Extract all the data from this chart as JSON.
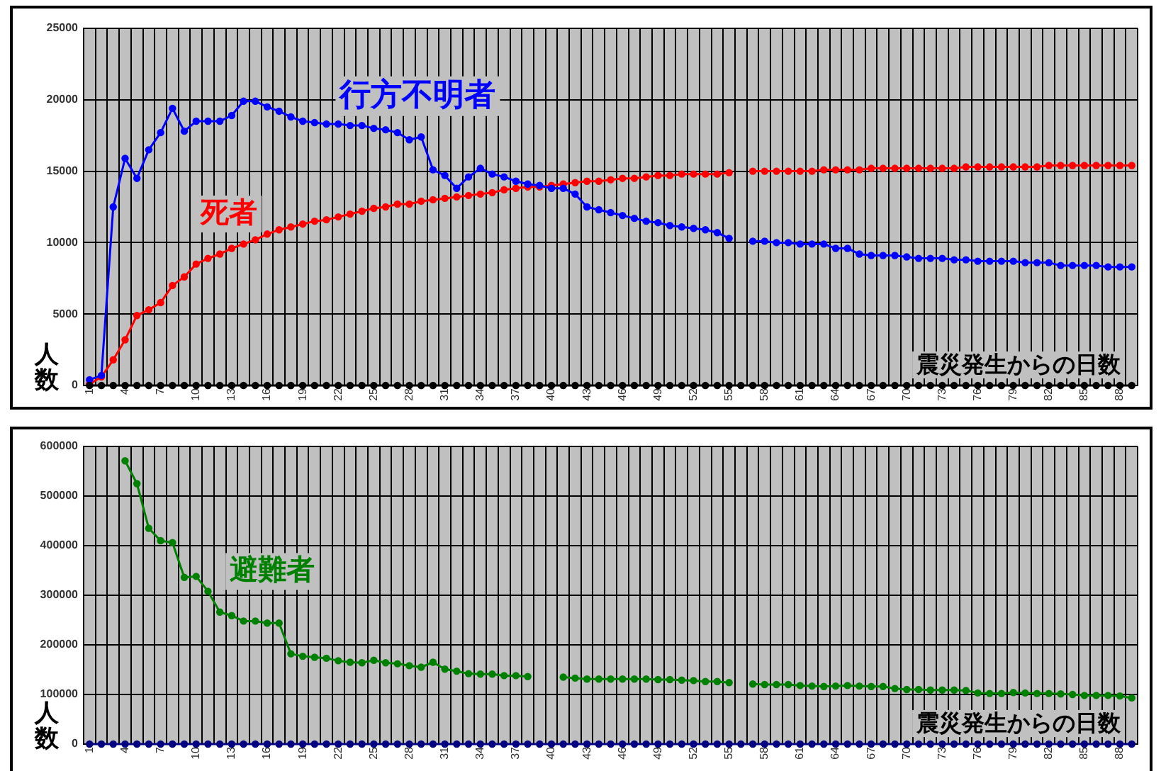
{
  "chart_data": [
    {
      "type": "line",
      "xlabel": "震災発生からの日数",
      "ylabel": "人数",
      "categories": [
        "1",
        null,
        null,
        "4",
        null,
        null,
        "7",
        null,
        null,
        "10",
        null,
        null,
        "13",
        null,
        null,
        "16",
        null,
        null,
        "19",
        null,
        null,
        "22",
        null,
        null,
        "25",
        null,
        null,
        "28",
        null,
        null,
        "31",
        null,
        null,
        "34",
        null,
        null,
        "37",
        null,
        null,
        "40",
        null,
        null,
        "43",
        null,
        null,
        "46",
        null,
        null,
        "49",
        null,
        null,
        "52",
        null,
        null,
        "55",
        null,
        null,
        "58",
        null,
        null,
        "61",
        null,
        null,
        "64",
        null,
        null,
        "67",
        null,
        null,
        "70",
        null,
        null,
        "73",
        null,
        null,
        "76",
        null,
        null,
        "79",
        null,
        null,
        "82",
        null,
        null,
        "85",
        null,
        null,
        "88",
        null
      ],
      "series": [
        {
          "color": "#000000",
          "values": [
            0,
            0,
            0,
            0,
            0,
            0,
            0,
            0,
            0,
            0,
            0,
            0,
            0,
            0,
            0,
            0,
            0,
            0,
            0,
            0,
            0,
            0,
            0,
            0,
            0,
            0,
            0,
            0,
            0,
            0,
            0,
            0,
            0,
            0,
            0,
            0,
            0,
            0,
            0,
            0,
            0,
            0,
            0,
            0,
            0,
            0,
            0,
            0,
            0,
            0,
            0,
            0,
            0,
            0,
            0,
            0,
            0,
            0,
            0,
            0,
            0,
            0,
            0,
            0,
            0,
            0,
            0,
            0,
            0,
            0,
            0,
            0,
            0,
            0,
            0,
            0,
            0,
            0,
            0,
            0,
            0,
            0,
            0,
            0,
            0,
            0,
            0,
            0,
            0
          ]
        },
        {
          "name": "行方不明者",
          "color": "#0000ff",
          "values": [
            400,
            700,
            12500,
            15900,
            14500,
            16500,
            17700,
            19400,
            17800,
            18500,
            18500,
            18500,
            18900,
            19900,
            19900,
            19500,
            19200,
            18800,
            18500,
            18400,
            18300,
            18300,
            18200,
            18200,
            18000,
            17900,
            17700,
            17200,
            17400,
            15100,
            14700,
            13800,
            14600,
            15200,
            14800,
            14600,
            14300,
            14100,
            14000,
            13800,
            13800,
            13400,
            12500,
            12300,
            12100,
            11900,
            11700,
            11500,
            11400,
            11200,
            11100,
            11000,
            10900,
            10700,
            10300,
            null,
            10100,
            10100,
            10000,
            10000,
            9900,
            9900,
            9900,
            9600,
            9600,
            9200,
            9100,
            9100,
            9100,
            9000,
            8900,
            8900,
            8900,
            8800,
            8800,
            8700,
            8700,
            8700,
            8700,
            8600,
            8600,
            8600,
            8400,
            8400,
            8400,
            8400,
            8300,
            8300,
            8300
          ]
        },
        {
          "name": "死者",
          "color": "#ff0000",
          "values": [
            100,
            600,
            1800,
            3200,
            4900,
            5300,
            5800,
            7000,
            7600,
            8500,
            8900,
            9200,
            9600,
            9900,
            10200,
            10600,
            10900,
            11100,
            11300,
            11500,
            11600,
            11800,
            12000,
            12200,
            12400,
            12500,
            12700,
            12700,
            12900,
            13000,
            13100,
            13200,
            13300,
            13400,
            13500,
            13700,
            13800,
            13900,
            13900,
            14000,
            14100,
            14200,
            14300,
            14300,
            14400,
            14500,
            14500,
            14600,
            14700,
            14700,
            14800,
            14800,
            14800,
            14800,
            14900,
            null,
            15000,
            15000,
            15000,
            15000,
            15000,
            15000,
            15100,
            15100,
            15100,
            15100,
            15200,
            15200,
            15200,
            15200,
            15200,
            15200,
            15200,
            15200,
            15300,
            15300,
            15300,
            15300,
            15300,
            15300,
            15300,
            15400,
            15400,
            15400,
            15400,
            15400,
            15400,
            15400,
            15400
          ]
        }
      ],
      "ylim": [
        0,
        25000
      ],
      "yticks": [
        0,
        5000,
        10000,
        15000,
        20000,
        25000
      ],
      "grid": true,
      "legend": false,
      "marker": "circle"
    },
    {
      "type": "line",
      "xlabel": "震災発生からの日数",
      "ylabel": "人数",
      "categories": [
        "1",
        null,
        null,
        "4",
        null,
        null,
        "7",
        null,
        null,
        "10",
        null,
        null,
        "13",
        null,
        null,
        "16",
        null,
        null,
        "19",
        null,
        null,
        "22",
        null,
        null,
        "25",
        null,
        null,
        "28",
        null,
        null,
        "31",
        null,
        null,
        "34",
        null,
        null,
        "37",
        null,
        null,
        "40",
        null,
        null,
        "43",
        null,
        null,
        "46",
        null,
        null,
        "49",
        null,
        null,
        "52",
        null,
        null,
        "55",
        null,
        null,
        "58",
        null,
        null,
        "61",
        null,
        null,
        "64",
        null,
        null,
        "67",
        null,
        null,
        "70",
        null,
        null,
        "73",
        null,
        null,
        "76",
        null,
        null,
        "79",
        null,
        null,
        "82",
        null,
        null,
        "85",
        null,
        null,
        "88",
        null
      ],
      "series": [
        {
          "color": "#000080",
          "values": [
            0,
            0,
            0,
            0,
            0,
            0,
            0,
            0,
            0,
            0,
            0,
            0,
            0,
            0,
            0,
            0,
            0,
            0,
            0,
            0,
            0,
            0,
            0,
            0,
            0,
            0,
            0,
            0,
            0,
            0,
            0,
            0,
            0,
            0,
            0,
            0,
            0,
            0,
            0,
            0,
            0,
            0,
            0,
            0,
            0,
            0,
            0,
            0,
            0,
            0,
            0,
            0,
            0,
            0,
            0,
            0,
            0,
            0,
            0,
            0,
            0,
            0,
            0,
            0,
            0,
            0,
            0,
            0,
            0,
            0,
            0,
            0,
            0,
            0,
            0,
            0,
            0,
            0,
            0,
            0,
            0,
            0,
            0,
            0,
            0,
            0,
            0,
            0,
            0
          ]
        },
        {
          "name": "避難者",
          "color": "#008000",
          "values": [
            null,
            null,
            null,
            571000,
            525000,
            435000,
            410000,
            406000,
            336000,
            338000,
            308000,
            266000,
            259000,
            248000,
            248000,
            244000,
            244000,
            182000,
            177000,
            175000,
            173000,
            168000,
            165000,
            164000,
            169000,
            164000,
            162000,
            158000,
            155000,
            165000,
            151000,
            147000,
            142000,
            141000,
            141000,
            138000,
            138000,
            136000,
            null,
            null,
            135000,
            133000,
            131000,
            131000,
            131000,
            131000,
            131000,
            131000,
            130000,
            130000,
            129000,
            128000,
            126000,
            126000,
            124000,
            null,
            121000,
            120000,
            120000,
            120000,
            118000,
            117000,
            116000,
            117000,
            118000,
            117000,
            116000,
            116000,
            112000,
            110000,
            110000,
            109000,
            109000,
            109000,
            108000,
            103000,
            102000,
            102000,
            104000,
            103000,
            102000,
            102000,
            101000,
            100000,
            98000,
            98000,
            98000,
            97000,
            93000
          ]
        }
      ],
      "ylim": [
        0,
        600000
      ],
      "yticks": [
        0,
        100000,
        200000,
        300000,
        400000,
        500000,
        600000
      ],
      "grid": true,
      "legend": false,
      "marker": "circle"
    }
  ]
}
